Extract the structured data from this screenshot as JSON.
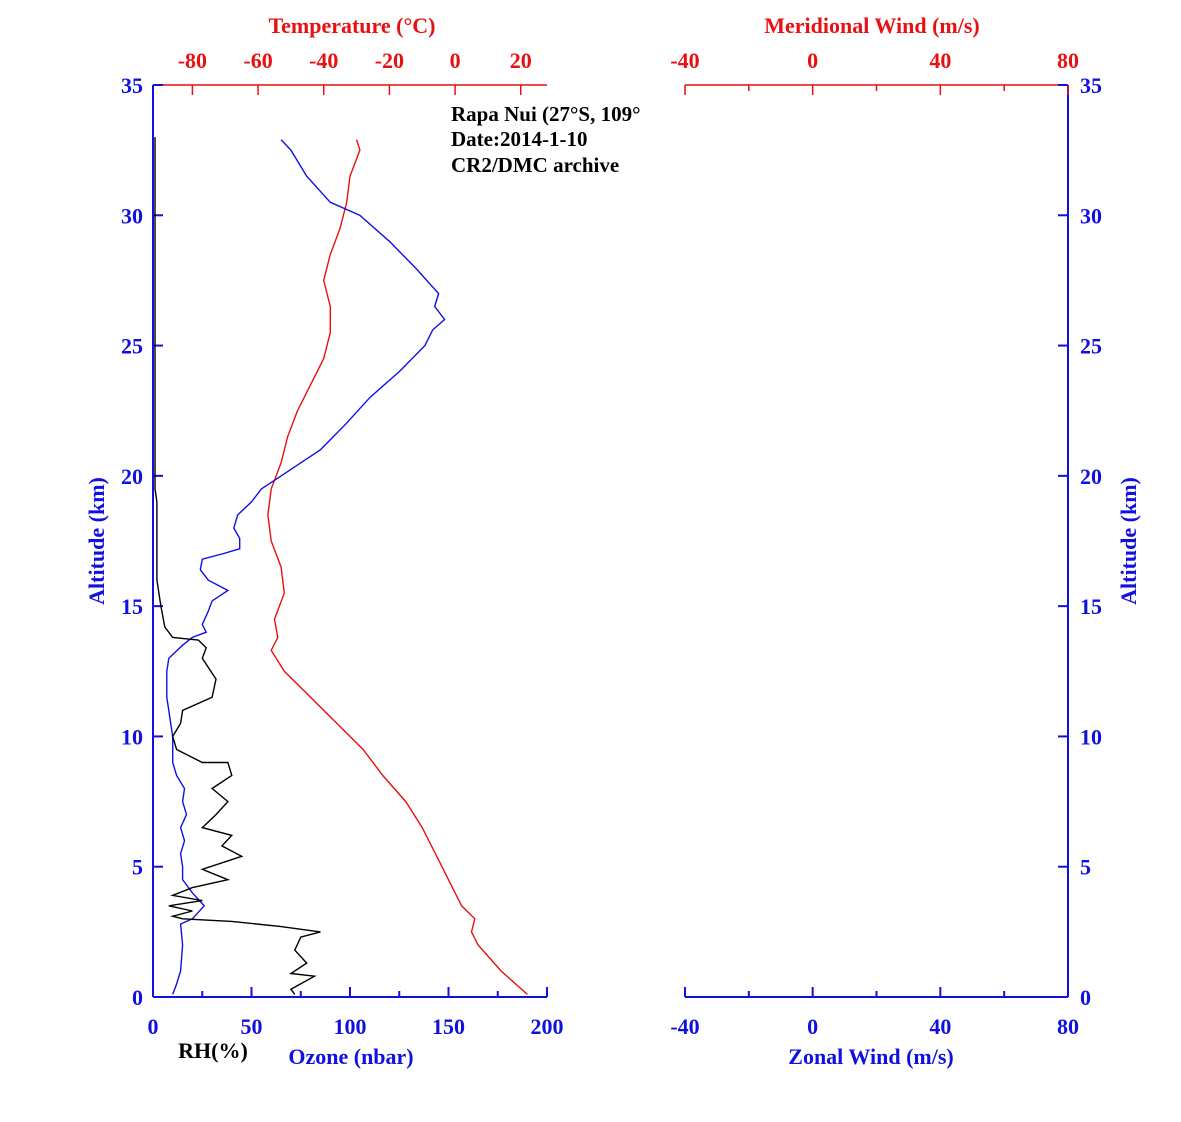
{
  "chart_data": {
    "type": "line",
    "annotation": [
      "Rapa Nui (27°S, 109°",
      "Date:2014-1-10",
      "CR2/DMC archive"
    ],
    "colors": {
      "blue": "#1010e0",
      "red": "#e81010",
      "black": "#000000"
    },
    "left_panel": {
      "top_axis": {
        "label": "Temperature (°C)",
        "ticks": [
          "-80",
          "-60",
          "-40",
          "-20",
          "0",
          "20"
        ],
        "range": [
          -92,
          28
        ]
      },
      "bottom_axis": {
        "label": "Ozone (nbar)",
        "extra_label": "RH(%)",
        "ticks": [
          "0",
          "50",
          "100",
          "150",
          "200"
        ],
        "range": [
          0,
          200
        ]
      },
      "y_axis": {
        "label": "Altitude (km)",
        "ticks": [
          "0",
          "5",
          "10",
          "15",
          "20",
          "25",
          "30",
          "35"
        ],
        "range": [
          0,
          35
        ]
      },
      "series": [
        {
          "name": "Temperature",
          "color": "#e81010",
          "axis": "temperature",
          "points": [
            [
              22,
              0.1
            ],
            [
              14,
              1
            ],
            [
              7,
              2
            ],
            [
              5,
              2.5
            ],
            [
              6,
              3
            ],
            [
              2,
              3.5
            ],
            [
              -2,
              4.5
            ],
            [
              -6,
              5.5
            ],
            [
              -10,
              6.5
            ],
            [
              -15,
              7.5
            ],
            [
              -22,
              8.5
            ],
            [
              -28,
              9.5
            ],
            [
              -36,
              10.5
            ],
            [
              -44,
              11.5
            ],
            [
              -52,
              12.5
            ],
            [
              -56,
              13.3
            ],
            [
              -54,
              13.8
            ],
            [
              -55,
              14.5
            ],
            [
              -52,
              15.5
            ],
            [
              -53,
              16.5
            ],
            [
              -56,
              17.5
            ],
            [
              -57,
              18.5
            ],
            [
              -56,
              19.5
            ],
            [
              -53,
              20.5
            ],
            [
              -51,
              21.5
            ],
            [
              -48,
              22.5
            ],
            [
              -44,
              23.5
            ],
            [
              -40,
              24.5
            ],
            [
              -38,
              25.5
            ],
            [
              -38,
              26.5
            ],
            [
              -40,
              27.5
            ],
            [
              -38,
              28.5
            ],
            [
              -35,
              29.5
            ],
            [
              -33,
              30.5
            ],
            [
              -32,
              31.5
            ],
            [
              -29,
              32.5
            ],
            [
              -30,
              32.9
            ]
          ]
        },
        {
          "name": "Ozone",
          "color": "#1010e0",
          "axis": "ozone",
          "points": [
            [
              10,
              0.1
            ],
            [
              12,
              0.5
            ],
            [
              14,
              1
            ],
            [
              15,
              2
            ],
            [
              14,
              2.8
            ],
            [
              20,
              3
            ],
            [
              26,
              3.5
            ],
            [
              20,
              4
            ],
            [
              15,
              4.5
            ],
            [
              15,
              5
            ],
            [
              14,
              5.5
            ],
            [
              16,
              6
            ],
            [
              14,
              6.5
            ],
            [
              17,
              7
            ],
            [
              15,
              7.5
            ],
            [
              16,
              8
            ],
            [
              12,
              8.5
            ],
            [
              10,
              9
            ],
            [
              10,
              9.5
            ],
            [
              10,
              10
            ],
            [
              9,
              10.5
            ],
            [
              8,
              11
            ],
            [
              7,
              11.5
            ],
            [
              7,
              12
            ],
            [
              7,
              12.5
            ],
            [
              8,
              13
            ],
            [
              15,
              13.5
            ],
            [
              20,
              13.8
            ],
            [
              27,
              14
            ],
            [
              25,
              14.3
            ],
            [
              28,
              14.8
            ],
            [
              30,
              15.2
            ],
            [
              38,
              15.6
            ],
            [
              28,
              16
            ],
            [
              24,
              16.4
            ],
            [
              25,
              16.8
            ],
            [
              35,
              17
            ],
            [
              44,
              17.2
            ],
            [
              44,
              17.6
            ],
            [
              41,
              18
            ],
            [
              43,
              18.5
            ],
            [
              50,
              19
            ],
            [
              55,
              19.5
            ],
            [
              65,
              20
            ],
            [
              75,
              20.5
            ],
            [
              85,
              21
            ],
            [
              98,
              22
            ],
            [
              110,
              23
            ],
            [
              125,
              24
            ],
            [
              138,
              25
            ],
            [
              142,
              25.6
            ],
            [
              148,
              26
            ],
            [
              143,
              26.5
            ],
            [
              145,
              27
            ],
            [
              133,
              28
            ],
            [
              120,
              29
            ],
            [
              105,
              30
            ],
            [
              90,
              30.5
            ],
            [
              78,
              31.5
            ],
            [
              70,
              32.5
            ],
            [
              65,
              32.9
            ]
          ]
        },
        {
          "name": "RH",
          "color": "#000000",
          "axis": "rh",
          "points": [
            [
              72,
              0.1
            ],
            [
              70,
              0.3
            ],
            [
              82,
              0.8
            ],
            [
              70,
              0.9
            ],
            [
              78,
              1.3
            ],
            [
              72,
              1.8
            ],
            [
              75,
              2.3
            ],
            [
              85,
              2.5
            ],
            [
              65,
              2.7
            ],
            [
              40,
              2.9
            ],
            [
              15,
              3
            ],
            [
              10,
              3.1
            ],
            [
              20,
              3.3
            ],
            [
              8,
              3.5
            ],
            [
              25,
              3.7
            ],
            [
              10,
              3.9
            ],
            [
              20,
              4.2
            ],
            [
              38,
              4.5
            ],
            [
              25,
              4.9
            ],
            [
              45,
              5.4
            ],
            [
              35,
              5.8
            ],
            [
              40,
              6.2
            ],
            [
              25,
              6.5
            ],
            [
              32,
              7
            ],
            [
              38,
              7.5
            ],
            [
              30,
              8
            ],
            [
              40,
              8.5
            ],
            [
              38,
              9
            ],
            [
              25,
              9
            ],
            [
              12,
              9.5
            ],
            [
              10,
              10
            ],
            [
              14,
              10.5
            ],
            [
              15,
              11
            ],
            [
              30,
              11.5
            ],
            [
              32,
              12.2
            ],
            [
              25,
              13
            ],
            [
              27,
              13.4
            ],
            [
              23,
              13.7
            ],
            [
              10,
              13.8
            ],
            [
              6,
              14.2
            ],
            [
              4,
              15
            ],
            [
              3,
              15.5
            ],
            [
              2,
              16
            ],
            [
              2,
              19
            ],
            [
              1,
              19.5
            ],
            [
              1,
              22
            ],
            [
              1,
              33
            ]
          ]
        }
      ]
    },
    "right_panel": {
      "top_axis": {
        "label": "Meridional Wind (m/s)",
        "ticks": [
          "-40",
          "0",
          "40",
          "80"
        ],
        "range": [
          -40,
          80
        ]
      },
      "bottom_axis": {
        "label": "Zonal Wind (m/s)",
        "ticks": [
          "-40",
          "0",
          "40",
          "80"
        ],
        "range": [
          -40,
          80
        ]
      },
      "y_axis": {
        "label": "Altitude (km)",
        "ticks": [
          "0",
          "5",
          "10",
          "15",
          "20",
          "25",
          "30",
          "35"
        ],
        "range": [
          0,
          35
        ]
      },
      "series": []
    }
  }
}
